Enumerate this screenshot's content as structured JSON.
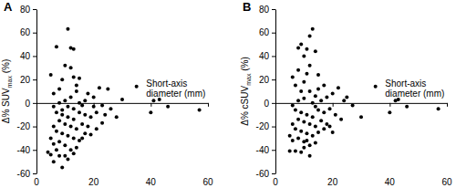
{
  "chart_data": [
    {
      "type": "scatter",
      "title": "A",
      "xlabel": [
        "Short-axis",
        "diameter (mm)"
      ],
      "ylabel": [
        "Δ% SUV",
        "max",
        " (%)"
      ],
      "color": "#000000",
      "marker": "circle",
      "xlim": [
        0,
        60
      ],
      "xticks": [
        0,
        20,
        40,
        60
      ],
      "ylim": [
        -60,
        80
      ],
      "yticks": [
        -60,
        -40,
        -20,
        0,
        20,
        40,
        60,
        80
      ],
      "x": [
        11,
        12,
        13,
        7,
        13,
        5,
        9,
        15,
        22,
        35,
        43,
        41,
        40,
        57,
        46,
        26,
        30,
        23,
        20,
        18,
        17,
        16,
        14,
        12,
        10,
        8,
        6,
        7,
        9,
        11,
        13,
        15,
        17,
        19,
        21,
        24,
        28,
        8,
        10,
        12,
        14,
        16,
        18,
        6,
        7,
        9,
        11,
        13,
        15,
        17,
        19,
        21,
        23,
        5,
        6,
        8,
        10,
        12,
        14,
        16,
        5,
        6,
        9,
        10,
        11,
        13,
        7,
        8,
        4,
        12,
        10,
        14,
        8,
        6,
        20,
        25,
        13,
        11,
        9,
        15
      ],
      "values": [
        63,
        47,
        46,
        48,
        22,
        24,
        20,
        21,
        13,
        14,
        3,
        2,
        -8,
        -6,
        -3,
        -5,
        3,
        -2,
        5,
        8,
        2,
        -2,
        10,
        5,
        2,
        0,
        -3,
        -8,
        -10,
        -12,
        -14,
        -8,
        -10,
        -12,
        -8,
        -10,
        -12,
        -15,
        -18,
        -20,
        -22,
        -18,
        -20,
        -20,
        -24,
        -26,
        -28,
        -30,
        -32,
        -26,
        -27,
        -22,
        -17,
        -30,
        -35,
        -33,
        -36,
        -40,
        -38,
        -30,
        -44,
        -50,
        -55,
        -45,
        -48,
        -43,
        -40,
        -45,
        -42,
        30,
        32,
        15,
        12,
        8,
        -3,
        12,
        -5,
        -3,
        -6,
        0
      ]
    },
    {
      "type": "scatter",
      "title": "B",
      "xlabel": [
        "Short-axis",
        "diameter (mm)"
      ],
      "ylabel": [
        "Δ% cSUV",
        "max",
        " (%)"
      ],
      "color": "#000000",
      "marker": "circle",
      "xlim": [
        0,
        60
      ],
      "xticks": [
        0,
        20,
        40,
        60
      ],
      "ylim": [
        -60,
        80
      ],
      "yticks": [
        -60,
        -40,
        -20,
        0,
        20,
        40,
        60,
        80
      ],
      "x": [
        13,
        12,
        9,
        8,
        11,
        14,
        10,
        12,
        8,
        15,
        6,
        10,
        22,
        35,
        43,
        42,
        40,
        57,
        46,
        25,
        27,
        20,
        18,
        16,
        14,
        12,
        10,
        8,
        6,
        7,
        9,
        11,
        13,
        15,
        17,
        19,
        21,
        23,
        30,
        8,
        10,
        12,
        14,
        16,
        18,
        6,
        7,
        9,
        11,
        13,
        15,
        17,
        19,
        5,
        6,
        8,
        10,
        12,
        14,
        5,
        7,
        10,
        12,
        9,
        11,
        13,
        15,
        17,
        9,
        7,
        11,
        14,
        20,
        24
      ],
      "values": [
        63,
        57,
        50,
        47,
        46,
        44,
        40,
        32,
        28,
        24,
        22,
        18,
        13,
        14,
        3,
        2,
        -8,
        -5,
        -3,
        5,
        -2,
        8,
        5,
        2,
        6,
        10,
        4,
        2,
        -2,
        -6,
        -8,
        -10,
        -12,
        -6,
        -8,
        -5,
        -10,
        -14,
        -12,
        -14,
        -16,
        -18,
        -20,
        -15,
        -18,
        -18,
        -22,
        -24,
        -26,
        -28,
        -25,
        -22,
        -20,
        -28,
        -32,
        -30,
        -33,
        -36,
        -34,
        -41,
        -41,
        -38,
        -45,
        -42,
        -32,
        0,
        12,
        15,
        10,
        15,
        25,
        -3,
        -25,
        2
      ]
    }
  ]
}
